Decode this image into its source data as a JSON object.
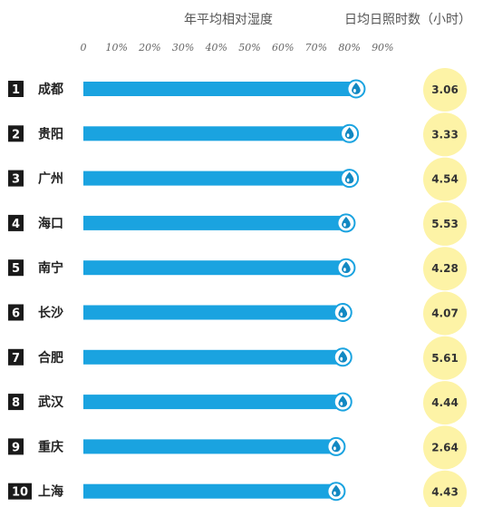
{
  "colors": {
    "bar": "#1aa3e0",
    "bar_dark": "#1288c2",
    "rank_bg": "#1a1a1a",
    "sun_bg": "#fdf3a6",
    "drop": "#9fdcf5"
  },
  "chart_data": {
    "type": "bar",
    "title_humidity": "年平均相对湿度",
    "title_sun": "日均日照时数（小时）",
    "x_ticks": [
      "0",
      "10%",
      "20%",
      "30%",
      "40%",
      "50%",
      "60%",
      "70%",
      "80%",
      "90%"
    ],
    "xlim": [
      0,
      90
    ],
    "drop_icon": "water-drop-icon",
    "sun_icon": "sun-circle",
    "rows": [
      {
        "rank": "1",
        "city": "成都",
        "humidity": 82,
        "sunshine": "3.06"
      },
      {
        "rank": "2",
        "city": "贵阳",
        "humidity": 80,
        "sunshine": "3.33"
      },
      {
        "rank": "3",
        "city": "广州",
        "humidity": 80,
        "sunshine": "4.54"
      },
      {
        "rank": "4",
        "city": "海口",
        "humidity": 79,
        "sunshine": "5.53"
      },
      {
        "rank": "5",
        "city": "南宁",
        "humidity": 79,
        "sunshine": "4.28"
      },
      {
        "rank": "6",
        "city": "长沙",
        "humidity": 78,
        "sunshine": "4.07"
      },
      {
        "rank": "7",
        "city": "合肥",
        "humidity": 78,
        "sunshine": "5.61"
      },
      {
        "rank": "8",
        "city": "武汉",
        "humidity": 78,
        "sunshine": "4.44"
      },
      {
        "rank": "9",
        "city": "重庆",
        "humidity": 76,
        "sunshine": "2.64"
      },
      {
        "rank": "10",
        "city": "上海",
        "humidity": 76,
        "sunshine": "4.43"
      }
    ]
  }
}
